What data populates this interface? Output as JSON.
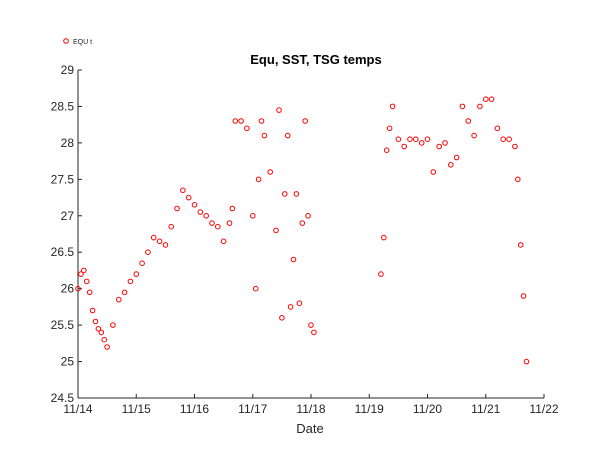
{
  "chart_data": {
    "type": "scatter",
    "title": "Equ, SST, TSG temps",
    "xlabel": "Date",
    "ylabel": "",
    "xlim": [
      "11/14",
      "11/22"
    ],
    "ylim": [
      24.5,
      29
    ],
    "x_tick_labels": [
      "11/14",
      "11/15",
      "11/16",
      "11/17",
      "11/18",
      "11/19",
      "11/20",
      "11/21",
      "11/22"
    ],
    "y_ticks": [
      24.5,
      25,
      25.5,
      26,
      26.5,
      27,
      27.5,
      28,
      28.5,
      29
    ],
    "y_tick_labels": [
      "24.5",
      "25",
      "25.5",
      "26",
      "26.5",
      "27",
      "27.5",
      "28",
      "28.5",
      "29"
    ],
    "grid": false,
    "legend": {
      "position": "top-left (outside axes)",
      "entries": [
        "EQU t"
      ]
    },
    "marker": {
      "shape": "open circle",
      "color": "#ff0000"
    },
    "series": [
      {
        "name": "EQU t",
        "x": [
          "11/14 00:00",
          "11/14 01:12",
          "11/14 02:24",
          "11/14 03:36",
          "11/14 04:48",
          "11/14 06:00",
          "11/14 07:12",
          "11/14 08:24",
          "11/14 09:36",
          "11/14 10:48",
          "11/14 12:00",
          "11/14 14:24",
          "11/14 16:48",
          "11/14 19:12",
          "11/14 21:36",
          "11/15 00:00",
          "11/15 02:24",
          "11/15 04:48",
          "11/15 07:12",
          "11/15 09:36",
          "11/15 12:00",
          "11/15 14:24",
          "11/15 16:48",
          "11/15 19:12",
          "11/15 21:36",
          "11/16 00:00",
          "11/16 02:24",
          "11/16 04:48",
          "11/16 07:12",
          "11/16 09:36",
          "11/16 12:00",
          "11/16 14:24",
          "11/16 15:36",
          "11/16 16:48",
          "11/16 19:12",
          "11/16 21:36",
          "11/17 00:00",
          "11/17 01:12",
          "11/17 02:24",
          "11/17 03:36",
          "11/17 04:48",
          "11/17 07:12",
          "11/17 09:36",
          "11/17 10:48",
          "11/17 12:00",
          "11/17 13:12",
          "11/17 14:24",
          "11/17 15:36",
          "11/17 16:48",
          "11/17 18:00",
          "11/17 19:12",
          "11/17 20:24",
          "11/17 21:36",
          "11/17 22:48",
          "11/18 00:00",
          "11/18 01:12",
          "11/19 04:48",
          "11/19 06:00",
          "11/19 07:12",
          "11/19 08:24",
          "11/19 09:36",
          "11/19 12:00",
          "11/19 14:24",
          "11/19 16:48",
          "11/19 19:12",
          "11/19 21:36",
          "11/20 00:00",
          "11/20 02:24",
          "11/20 04:48",
          "11/20 07:12",
          "11/20 09:36",
          "11/20 12:00",
          "11/20 14:24",
          "11/20 16:48",
          "11/20 19:12",
          "11/20 21:36",
          "11/21 00:00",
          "11/21 02:24",
          "11/21 04:48",
          "11/21 07:12",
          "11/21 09:36",
          "11/21 12:00",
          "11/21 13:12",
          "11/21 14:24",
          "11/21 15:36",
          "11/21 16:48"
        ],
        "values": [
          26.0,
          26.2,
          26.25,
          26.1,
          25.95,
          25.7,
          25.55,
          25.45,
          25.4,
          25.3,
          25.2,
          25.5,
          25.85,
          25.95,
          26.1,
          26.2,
          26.35,
          26.5,
          26.7,
          26.65,
          26.6,
          26.85,
          27.1,
          27.35,
          27.25,
          27.15,
          27.05,
          27.0,
          26.9,
          26.85,
          26.65,
          26.9,
          27.1,
          28.3,
          28.3,
          28.2,
          27.0,
          26.0,
          27.5,
          28.3,
          28.1,
          27.6,
          26.8,
          28.45,
          25.6,
          27.3,
          28.1,
          25.75,
          26.4,
          27.3,
          25.8,
          26.9,
          28.3,
          27.0,
          25.5,
          25.4,
          26.2,
          26.7,
          27.9,
          28.2,
          28.5,
          28.05,
          27.95,
          28.05,
          28.05,
          28.0,
          28.05,
          27.6,
          27.95,
          28.0,
          27.7,
          27.8,
          28.5,
          28.3,
          28.1,
          28.5,
          28.6,
          28.6,
          28.2,
          28.05,
          28.05,
          27.95,
          27.5,
          26.6,
          25.9,
          25.0
        ]
      }
    ]
  }
}
